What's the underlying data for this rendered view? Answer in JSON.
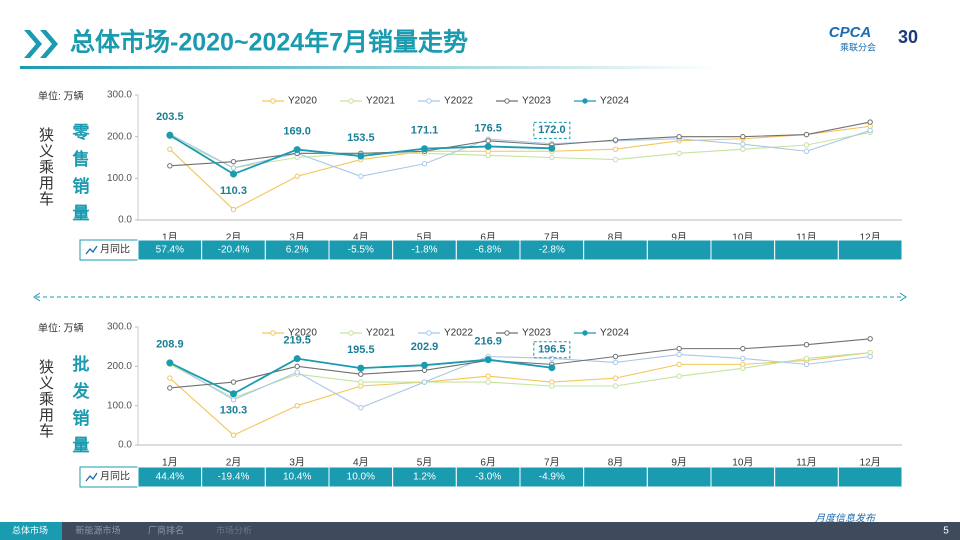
{
  "header": {
    "title": "总体市场-2020~2024年7月销量走势",
    "logo": "CPCA",
    "logo_sub": "乘联分会",
    "anniversary": "30"
  },
  "footer": {
    "tabs": [
      "总体市场",
      "新能源市场",
      "厂商排名",
      "市场分析"
    ],
    "note": "月度信息发布",
    "page": "5"
  },
  "chart_data": [
    {
      "type": "line",
      "group_label": "狭义乘用车",
      "title": "零售销量",
      "unit": "单位: 万辆",
      "categories": [
        "1月",
        "2月",
        "3月",
        "4月",
        "5月",
        "6月",
        "7月",
        "8月",
        "9月",
        "10月",
        "11月",
        "12月"
      ],
      "ylim": [
        0,
        300
      ],
      "yticks": [
        {
          "value": 0,
          "label": "0.0"
        },
        {
          "value": 100,
          "label": "100.0"
        },
        {
          "value": 200,
          "label": "200.0"
        },
        {
          "value": 300,
          "label": "300.0"
        }
      ],
      "series": [
        {
          "name": "Y2020",
          "color": "#f3c65a",
          "values": [
            170,
            25,
            105,
            145,
            165,
            165,
            165,
            170,
            190,
            195,
            205,
            225
          ]
        },
        {
          "name": "Y2021",
          "color": "#c5e3a0",
          "values": [
            200,
            125,
            150,
            160,
            160,
            155,
            150,
            145,
            160,
            170,
            180,
            210
          ]
        },
        {
          "name": "Y2022",
          "color": "#a9c8e6",
          "values": [
            206,
            125,
            160,
            105,
            135,
            194,
            183,
            190,
            195,
            182,
            165,
            215
          ]
        },
        {
          "name": "Y2023",
          "color": "#707070",
          "values": [
            130,
            140,
            160,
            160,
            165,
            190,
            180,
            192,
            200,
            200,
            205,
            235
          ]
        },
        {
          "name": "Y2024",
          "color": "#1a9bb0",
          "values": [
            203.5,
            110.3,
            169.0,
            153.5,
            171.1,
            176.5,
            172.0,
            null,
            null,
            null,
            null,
            null
          ],
          "value_labels": [
            "203.5",
            "110.3",
            "169.0",
            "153.5",
            "171.1",
            "176.5",
            "172.0",
            null,
            null,
            null,
            null,
            null
          ]
        }
      ],
      "yoy": {
        "label": "月同比",
        "values": [
          "57.4%",
          "-20.4%",
          "6.2%",
          "-5.5%",
          "-1.8%",
          "-6.8%",
          "-2.8%"
        ]
      }
    },
    {
      "type": "line",
      "group_label": "狭义乘用车",
      "title": "批发销量",
      "unit": "单位: 万辆",
      "categories": [
        "1月",
        "2月",
        "3月",
        "4月",
        "5月",
        "6月",
        "7月",
        "8月",
        "9月",
        "10月",
        "11月",
        "12月"
      ],
      "ylim": [
        0,
        300
      ],
      "yticks": [
        {
          "value": 0,
          "label": "0.0"
        },
        {
          "value": 100,
          "label": "100.0"
        },
        {
          "value": 200,
          "label": "200.0"
        },
        {
          "value": 300,
          "label": "300.0"
        }
      ],
      "series": [
        {
          "name": "Y2020",
          "color": "#f3c65a",
          "values": [
            170,
            25,
            100,
            150,
            160,
            175,
            160,
            170,
            205,
            205,
            215,
            235
          ]
        },
        {
          "name": "Y2021",
          "color": "#c5e3a0",
          "values": [
            205,
            120,
            180,
            160,
            160,
            160,
            150,
            150,
            175,
            195,
            220,
            235
          ]
        },
        {
          "name": "Y2022",
          "color": "#a9c8e6",
          "values": [
            210,
            115,
            185,
            95,
            160,
            225,
            220,
            210,
            230,
            220,
            205,
            225
          ]
        },
        {
          "name": "Y2023",
          "color": "#707070",
          "values": [
            145,
            160,
            200,
            180,
            190,
            215,
            205,
            225,
            245,
            245,
            255,
            270
          ]
        },
        {
          "name": "Y2024",
          "color": "#1a9bb0",
          "values": [
            208.9,
            130.3,
            219.5,
            195.5,
            202.9,
            216.9,
            196.5,
            null,
            null,
            null,
            null,
            null
          ],
          "value_labels": [
            "208.9",
            "130.3",
            "219.5",
            "195.5",
            "202.9",
            "216.9",
            "196.5",
            null,
            null,
            null,
            null,
            null
          ]
        }
      ],
      "yoy": {
        "label": "月同比",
        "values": [
          "44.4%",
          "-19.4%",
          "10.4%",
          "10.0%",
          "1.2%",
          "-3.0%",
          "-4.9%"
        ]
      }
    }
  ]
}
